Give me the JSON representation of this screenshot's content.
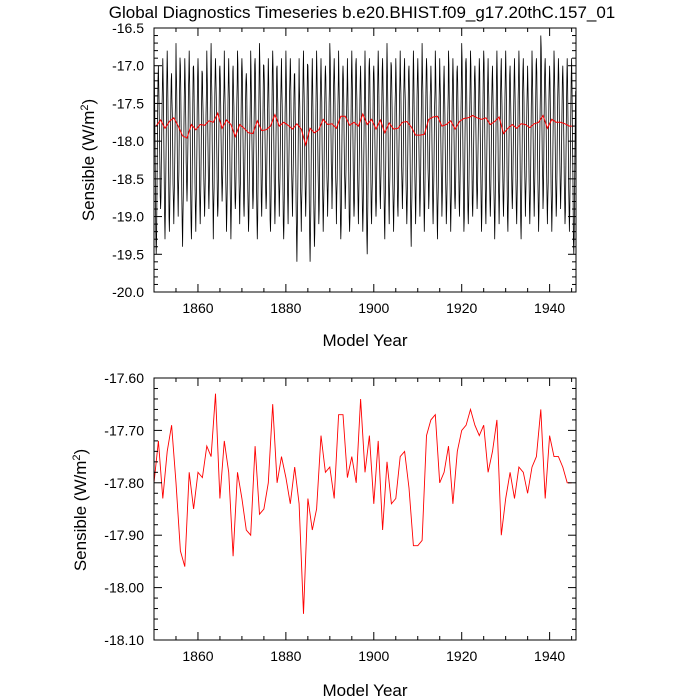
{
  "title": "Global Diagnostics Timeseries b.e20.BHIST.f09_g17.20thC.157_01",
  "colors": {
    "monthly": "#000000",
    "annual": "#ff0000",
    "axis": "#000000"
  },
  "chart_data": [
    {
      "type": "line",
      "title": "Global Diagnostics Timeseries b.e20.BHIST.f09_g17.20thC.157_01",
      "xlabel": "Model Year",
      "ylabel": "Sensible (W/m",
      "ylabel_sup": "2",
      "ylabel_end": ")",
      "xlim": [
        1850,
        1946
      ],
      "ylim": [
        -20.0,
        -16.5
      ],
      "x_ticks": [
        1860,
        1880,
        1900,
        1920,
        1940
      ],
      "x_tick_labels": [
        "1860",
        "1880",
        "1900",
        "1920",
        "1940"
      ],
      "y_ticks": [
        -20.0,
        -19.5,
        -19.0,
        -18.5,
        -18.0,
        -17.5,
        -17.0,
        -16.5
      ],
      "y_tick_labels": [
        "-20.0",
        "-19.5",
        "-19.0",
        "-18.5",
        "-18.0",
        "-17.5",
        "-17.0",
        "-16.5"
      ],
      "grid": false,
      "series": [
        {
          "color": "#000000",
          "monthly_start": 1850,
          "monthly_yearly_min": [
            -19.5,
            -18.9,
            -19.3,
            -19.2,
            -19.1,
            -19.0,
            -19.4,
            -18.8,
            -19.3,
            -19.2,
            -19.1,
            -19.0,
            -18.9,
            -19.3,
            -19.0,
            -18.8,
            -19.2,
            -19.3,
            -18.9,
            -19.1,
            -19.0,
            -19.2,
            -18.9,
            -19.3,
            -19.0,
            -18.9,
            -19.2,
            -19.1,
            -19.0,
            -19.3,
            -19.1,
            -19.0,
            -19.6,
            -19.2,
            -19.0,
            -19.6,
            -19.4,
            -19.1,
            -19.2,
            -19.0,
            -18.9,
            -19.1,
            -19.3,
            -18.9,
            -19.2,
            -19.0,
            -19.1,
            -19.2,
            -19.5,
            -19.1,
            -19.0,
            -18.9,
            -19.3,
            -19.1,
            -19.2,
            -19.0,
            -18.9,
            -19.1,
            -19.4,
            -19.1,
            -19.0,
            -19.2,
            -18.9,
            -19.1,
            -19.3,
            -19.0,
            -19.1,
            -19.2,
            -18.9,
            -19.0,
            -19.2,
            -19.1,
            -19.0,
            -18.9,
            -19.2,
            -19.1,
            -19.0,
            -19.3,
            -19.1,
            -19.0,
            -19.2,
            -18.9,
            -19.1,
            -19.3,
            -19.0,
            -19.1,
            -19.0,
            -19.2,
            -18.9,
            -19.1,
            -19.2,
            -19.0,
            -18.9,
            -19.1,
            -19.2,
            -19.5
          ],
          "monthly_yearly_max": [
            -16.8,
            -17.0,
            -16.9,
            -16.8,
            -17.1,
            -16.7,
            -17.0,
            -16.9,
            -16.8,
            -17.0,
            -16.9,
            -17.1,
            -16.8,
            -16.7,
            -16.9,
            -17.0,
            -16.8,
            -16.9,
            -17.0,
            -16.8,
            -16.9,
            -17.1,
            -16.8,
            -16.9,
            -16.7,
            -17.0,
            -16.9,
            -16.8,
            -17.0,
            -16.9,
            -16.8,
            -16.9,
            -17.1,
            -16.9,
            -16.8,
            -17.0,
            -16.9,
            -16.8,
            -16.9,
            -17.0,
            -16.7,
            -16.9,
            -16.8,
            -17.0,
            -16.9,
            -16.8,
            -16.9,
            -17.0,
            -16.8,
            -16.9,
            -17.0,
            -16.8,
            -16.9,
            -16.7,
            -17.0,
            -16.9,
            -16.8,
            -16.9,
            -17.0,
            -16.8,
            -16.9,
            -16.7,
            -16.9,
            -17.0,
            -16.8,
            -16.9,
            -17.0,
            -16.8,
            -16.9,
            -17.0,
            -16.7,
            -16.9,
            -16.8,
            -17.0,
            -16.9,
            -16.8,
            -16.9,
            -17.0,
            -16.8,
            -16.9,
            -16.8,
            -17.0,
            -16.9,
            -16.8,
            -16.9,
            -17.0,
            -16.8,
            -16.9,
            -16.6,
            -16.9,
            -17.0,
            -16.8,
            -16.9,
            -17.0,
            -16.9,
            -16.9
          ]
        },
        {
          "color": "#ff0000",
          "x": [
            1850,
            1851,
            1852,
            1853,
            1854,
            1855,
            1856,
            1857,
            1858,
            1859,
            1860,
            1861,
            1862,
            1863,
            1864,
            1865,
            1866,
            1867,
            1868,
            1869,
            1870,
            1871,
            1872,
            1873,
            1874,
            1875,
            1876,
            1877,
            1878,
            1879,
            1880,
            1881,
            1882,
            1883,
            1884,
            1885,
            1886,
            1887,
            1888,
            1889,
            1890,
            1891,
            1892,
            1893,
            1894,
            1895,
            1896,
            1897,
            1898,
            1899,
            1900,
            1901,
            1902,
            1903,
            1904,
            1905,
            1906,
            1907,
            1908,
            1909,
            1910,
            1911,
            1912,
            1913,
            1914,
            1915,
            1916,
            1917,
            1918,
            1919,
            1920,
            1921,
            1922,
            1923,
            1924,
            1925,
            1926,
            1927,
            1928,
            1929,
            1930,
            1931,
            1932,
            1933,
            1934,
            1935,
            1936,
            1937,
            1938,
            1939,
            1940,
            1941,
            1942,
            1943,
            1944,
            1945
          ],
          "values": [
            -17.8,
            -17.72,
            -17.83,
            -17.74,
            -17.69,
            -17.8,
            -17.93,
            -17.96,
            -17.78,
            -17.85,
            -17.78,
            -17.79,
            -17.73,
            -17.75,
            -17.63,
            -17.83,
            -17.72,
            -17.78,
            -17.94,
            -17.78,
            -17.83,
            -17.89,
            -17.9,
            -17.73,
            -17.86,
            -17.85,
            -17.8,
            -17.65,
            -17.8,
            -17.75,
            -17.79,
            -17.84,
            -17.77,
            -17.84,
            -18.05,
            -17.83,
            -17.89,
            -17.85,
            -17.71,
            -17.78,
            -17.77,
            -17.83,
            -17.67,
            -17.67,
            -17.79,
            -17.75,
            -17.8,
            -17.64,
            -17.78,
            -17.71,
            -17.84,
            -17.72,
            -17.89,
            -17.76,
            -17.84,
            -17.83,
            -17.75,
            -17.74,
            -17.81,
            -17.92,
            -17.92,
            -17.91,
            -17.71,
            -17.68,
            -17.67,
            -17.8,
            -17.78,
            -17.73,
            -17.84,
            -17.74,
            -17.7,
            -17.69,
            -17.66,
            -17.69,
            -17.71,
            -17.69,
            -17.78,
            -17.74,
            -17.68,
            -17.9,
            -17.83,
            -17.78,
            -17.83,
            -17.77,
            -17.78,
            -17.82,
            -17.77,
            -17.75,
            -17.66,
            -17.83,
            -17.71,
            -17.75,
            -17.75,
            -17.77,
            -17.8,
            -17.8
          ]
        }
      ]
    },
    {
      "type": "line",
      "xlabel": "Model Year",
      "ylabel": "Sensible (W/m",
      "ylabel_sup": "2",
      "ylabel_end": ")",
      "xlim": [
        1850,
        1946
      ],
      "ylim": [
        -18.1,
        -17.6
      ],
      "x_ticks": [
        1860,
        1880,
        1900,
        1920,
        1940
      ],
      "x_tick_labels": [
        "1860",
        "1880",
        "1900",
        "1920",
        "1940"
      ],
      "y_ticks": [
        -18.1,
        -18.0,
        -17.9,
        -17.8,
        -17.7,
        -17.6
      ],
      "y_tick_labels": [
        "-18.10",
        "-18.00",
        "-17.90",
        "-17.80",
        "-17.70",
        "-17.60"
      ],
      "grid": false,
      "series": [
        {
          "color": "#ff0000",
          "same_as_top_annual": true
        }
      ]
    }
  ]
}
